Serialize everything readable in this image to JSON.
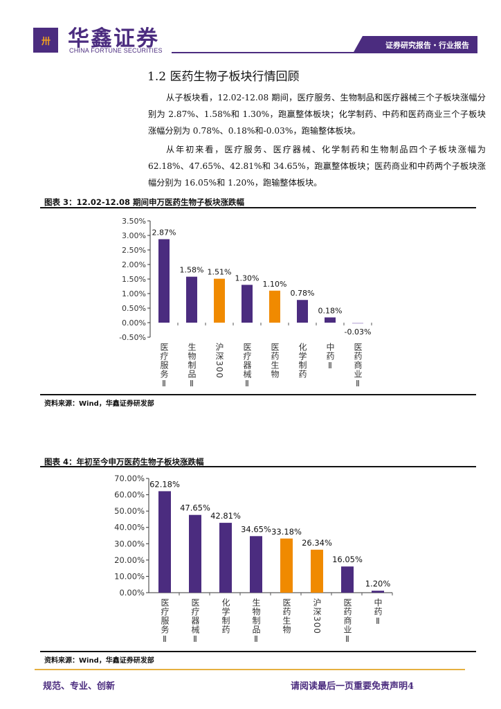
{
  "header": {
    "logo_mark": "卅",
    "brand_cn": "华鑫证券",
    "brand_en": "CHINA FORTUNE SECURITIES",
    "banner": "证券研究报告・行业报告"
  },
  "section": {
    "heading": "1.2 医药生物子板块行情回顾",
    "paragraphs": [
      "从子板块看，12.02-12.08 期间，医疗服务、生物制品和医疗器械三个子板块涨幅分别为 2.87%、1.58%和 1.30%，跑赢整体板块；化学制药、中药和医药商业三个子板块涨幅分别为 0.78%、0.18%和-0.03%，跑输整体板块。",
      "从年初来看，医疗服务、医疗器械、化学制药和生物制品四个子板块涨幅为 62.18%、47.65%、42.81%和 34.65%，跑赢整体板块；医药商业和中药两个子板块涨幅分别为 16.05%和 1.20%，跑输整体板块。"
    ]
  },
  "colors": {
    "primary": "#4b2c7f",
    "highlight": "#f08a00",
    "negative": "#c9bde0"
  },
  "chart_data": [
    {
      "type": "bar",
      "title": "图表 3：12.02-12.08 期间申万医药生物子板块涨跌幅",
      "source": "资料来源：Wind，华鑫证券研发部",
      "categories": [
        "医疗服务Ⅱ",
        "生物制品Ⅱ",
        "沪深300",
        "医疗器械Ⅱ",
        "医药生物",
        "化学制药",
        "中药Ⅱ",
        "医药商业Ⅱ"
      ],
      "values": [
        2.87,
        1.58,
        1.51,
        1.3,
        1.1,
        0.78,
        0.18,
        -0.03
      ],
      "data_labels": [
        "2.87%",
        "1.58%",
        "1.51%",
        "1.30%",
        "1.10%",
        "0.78%",
        "0.18%",
        "-0.03%"
      ],
      "highlight": [
        false,
        false,
        true,
        false,
        true,
        false,
        false,
        false
      ],
      "yticks": [
        "3.50%",
        "3.00%",
        "2.50%",
        "2.00%",
        "1.50%",
        "1.00%",
        "0.50%",
        "0.00%",
        "-0.50%"
      ],
      "ytick_values": [
        3.5,
        3.0,
        2.5,
        2.0,
        1.5,
        1.0,
        0.5,
        0,
        -0.5
      ],
      "ylim": [
        -0.5,
        3.5
      ],
      "xlabel": "",
      "ylabel": "",
      "legend": "none",
      "grid": false
    },
    {
      "type": "bar",
      "title": "图表 4：年初至今申万医药生物子板块涨跌幅",
      "source": "资料来源：Wind，华鑫证券研发部",
      "categories": [
        "医疗服务Ⅱ",
        "医疗器械Ⅱ",
        "化学制药",
        "生物制品Ⅱ",
        "医药生物",
        "沪深300",
        "医药商业Ⅱ",
        "中药Ⅱ"
      ],
      "values": [
        62.18,
        47.65,
        42.81,
        34.65,
        33.18,
        26.34,
        16.05,
        1.2
      ],
      "data_labels": [
        "62.18%",
        "47.65%",
        "42.81%",
        "34.65%",
        "33.18%",
        "26.34%",
        "16.05%",
        "1.20%"
      ],
      "highlight": [
        false,
        false,
        false,
        false,
        true,
        true,
        false,
        false
      ],
      "yticks": [
        "70.00%",
        "60.00%",
        "50.00%",
        "40.00%",
        "30.00%",
        "20.00%",
        "10.00%",
        "0.00%"
      ],
      "ytick_values": [
        70,
        60,
        50,
        40,
        30,
        20,
        10,
        0
      ],
      "ylim": [
        0,
        70
      ],
      "xlabel": "",
      "ylabel": "",
      "legend": "none",
      "grid": false
    }
  ],
  "footer": {
    "left": "规范、专业、创新",
    "right": "请阅读最后一页重要免责声明",
    "page_number": "4"
  }
}
